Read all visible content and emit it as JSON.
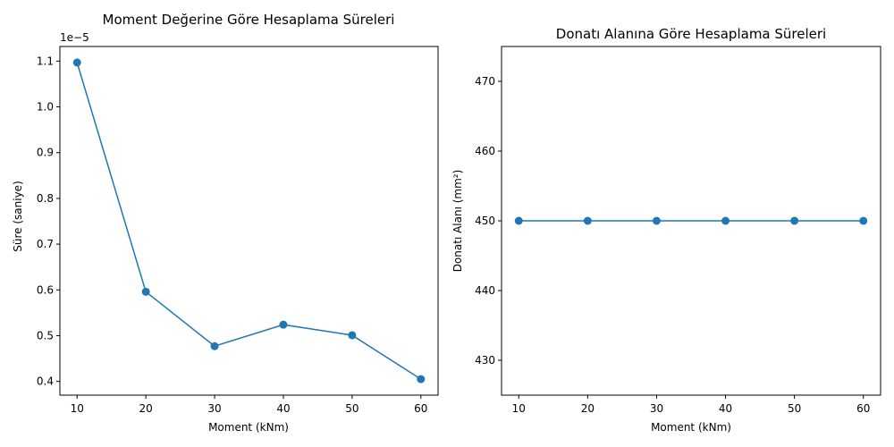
{
  "chart_data": [
    {
      "type": "line",
      "title": "Moment Değerine Göre Hesaplama Süreleri",
      "xlabel": "Moment (kNm)",
      "ylabel": "Süre (saniye)",
      "offset_text": "1e−5",
      "x": [
        10,
        20,
        30,
        40,
        50,
        60
      ],
      "values": [
        1.097,
        0.596,
        0.477,
        0.524,
        0.501,
        0.405
      ],
      "xlim": [
        7.5,
        62.5
      ],
      "ylim": [
        0.37,
        1.132
      ],
      "xticks": [
        10,
        20,
        30,
        40,
        50,
        60
      ],
      "xtick_labels": [
        "10",
        "20",
        "30",
        "40",
        "50",
        "60"
      ],
      "yticks": [
        0.4,
        0.5,
        0.6,
        0.7,
        0.8,
        0.9,
        1.0,
        1.1
      ],
      "ytick_labels": [
        "0.4",
        "0.5",
        "0.6",
        "0.7",
        "0.8",
        "0.9",
        "1.0",
        "1.1"
      ],
      "grid": false,
      "color": "#1f77b4"
    },
    {
      "type": "line",
      "title": "Donatı Alanına Göre Hesaplama Süreleri",
      "xlabel": "Moment (kNm)",
      "ylabel": "Donatı Alanı (mm²)",
      "x": [
        10,
        20,
        30,
        40,
        50,
        60
      ],
      "values": [
        450,
        450,
        450,
        450,
        450,
        450
      ],
      "xlim": [
        7.5,
        62.5
      ],
      "ylim": [
        425,
        475
      ],
      "xticks": [
        10,
        20,
        30,
        40,
        50,
        60
      ],
      "xtick_labels": [
        "10",
        "20",
        "30",
        "40",
        "50",
        "60"
      ],
      "yticks": [
        430,
        440,
        450,
        460,
        470
      ],
      "ytick_labels": [
        "430",
        "440",
        "450",
        "460",
        "470"
      ],
      "grid": false,
      "color": "#1f77b4"
    }
  ]
}
